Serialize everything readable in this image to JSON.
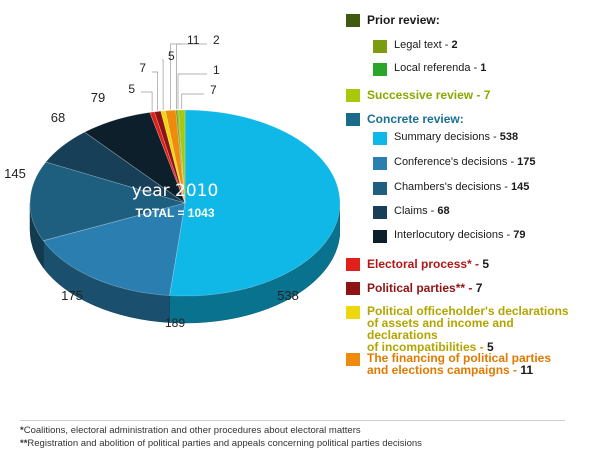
{
  "chart_data": {
    "type": "pie",
    "center_title": "year 2010",
    "center_subtitle": "TOTAL = 1043",
    "slices": [
      {
        "key": "summary",
        "label": "538",
        "value": 538,
        "color": "#0fb8e6"
      },
      {
        "key": "conference",
        "label": "175",
        "value": 175,
        "color": "#2a7fb0"
      },
      {
        "key": "chambers",
        "label": "145",
        "value": 145,
        "color": "#1e5f80"
      },
      {
        "key": "claims",
        "label": "68",
        "value": 68,
        "color": "#173f57"
      },
      {
        "key": "interlocutory",
        "label": "79",
        "value": 79,
        "color": "#0c1f2b"
      },
      {
        "key": "electoral",
        "label": "5",
        "value": 5,
        "color": "#e0201b"
      },
      {
        "key": "parties",
        "label": "7",
        "value": 7,
        "color": "#8e1414"
      },
      {
        "key": "officeholder",
        "label": "5",
        "value": 5,
        "color": "#ecd80c"
      },
      {
        "key": "financing",
        "label": "11",
        "value": 11,
        "color": "#f08a0c"
      },
      {
        "key": "legal_text",
        "label": "2",
        "value": 2,
        "color": "#7b9b10"
      },
      {
        "key": "local_referenda",
        "label": "1",
        "value": 1,
        "color": "#2aa52a"
      },
      {
        "key": "successive",
        "label": "7",
        "value": 7,
        "color": "#a8c80a"
      }
    ],
    "extra_label": "189"
  },
  "legend": {
    "prior": {
      "title": "Prior review:",
      "color": "#3f5a10"
    },
    "legal_text": {
      "label": "Legal text - ",
      "value": "2",
      "color": "#7b9b10"
    },
    "local_referenda": {
      "label": "Local referenda - ",
      "value": "1",
      "color": "#2aa52a"
    },
    "successive": {
      "label": "Successive review - ",
      "value": "7",
      "color": "#a8c80a",
      "text_color": "#8aa800"
    },
    "concrete": {
      "title": "Concrete review:",
      "color": "#1a6a8a",
      "text_color": "#1a6f96"
    },
    "summary": {
      "label": "Summary decisions - ",
      "value": "538",
      "color": "#0fb8e6"
    },
    "conference": {
      "label": "Conference's decisions - ",
      "value": "175",
      "color": "#2a7fb0"
    },
    "chambers": {
      "label": "Chambers's decisions - ",
      "value": "145",
      "color": "#1e5f80"
    },
    "claims": {
      "label": "Claims - ",
      "value": "68",
      "color": "#173f57"
    },
    "interlocutory": {
      "label": "Interlocutory decisions - ",
      "value": "79",
      "color": "#0c1f2b"
    },
    "electoral": {
      "label": "Electoral process* - ",
      "value": "5",
      "color": "#e0201b",
      "text_color": "#b01818"
    },
    "parties": {
      "label": "Political parties** - ",
      "value": "7",
      "color": "#8e1414",
      "text_color": "#8e1414"
    },
    "officeholder": {
      "line1": "Political officeholder's declarations",
      "line2": "of assets and income and declarations",
      "line3": "of incompatibilities - ",
      "value": "5",
      "color": "#ecd80c",
      "text_color": "#b3a400"
    },
    "financing": {
      "line1": "The financing of political parties",
      "line2": "and elections campaigns - ",
      "value": "11",
      "color": "#f08a0c",
      "text_color": "#e07a00"
    }
  },
  "footnotes": {
    "one_mark": "*",
    "one_text": "Coalitions, electoral administration and other procedures about electoral matters",
    "two_mark": "**",
    "two_text": "Registration and abolition of political parties and appeals concerning political parties decisions"
  }
}
